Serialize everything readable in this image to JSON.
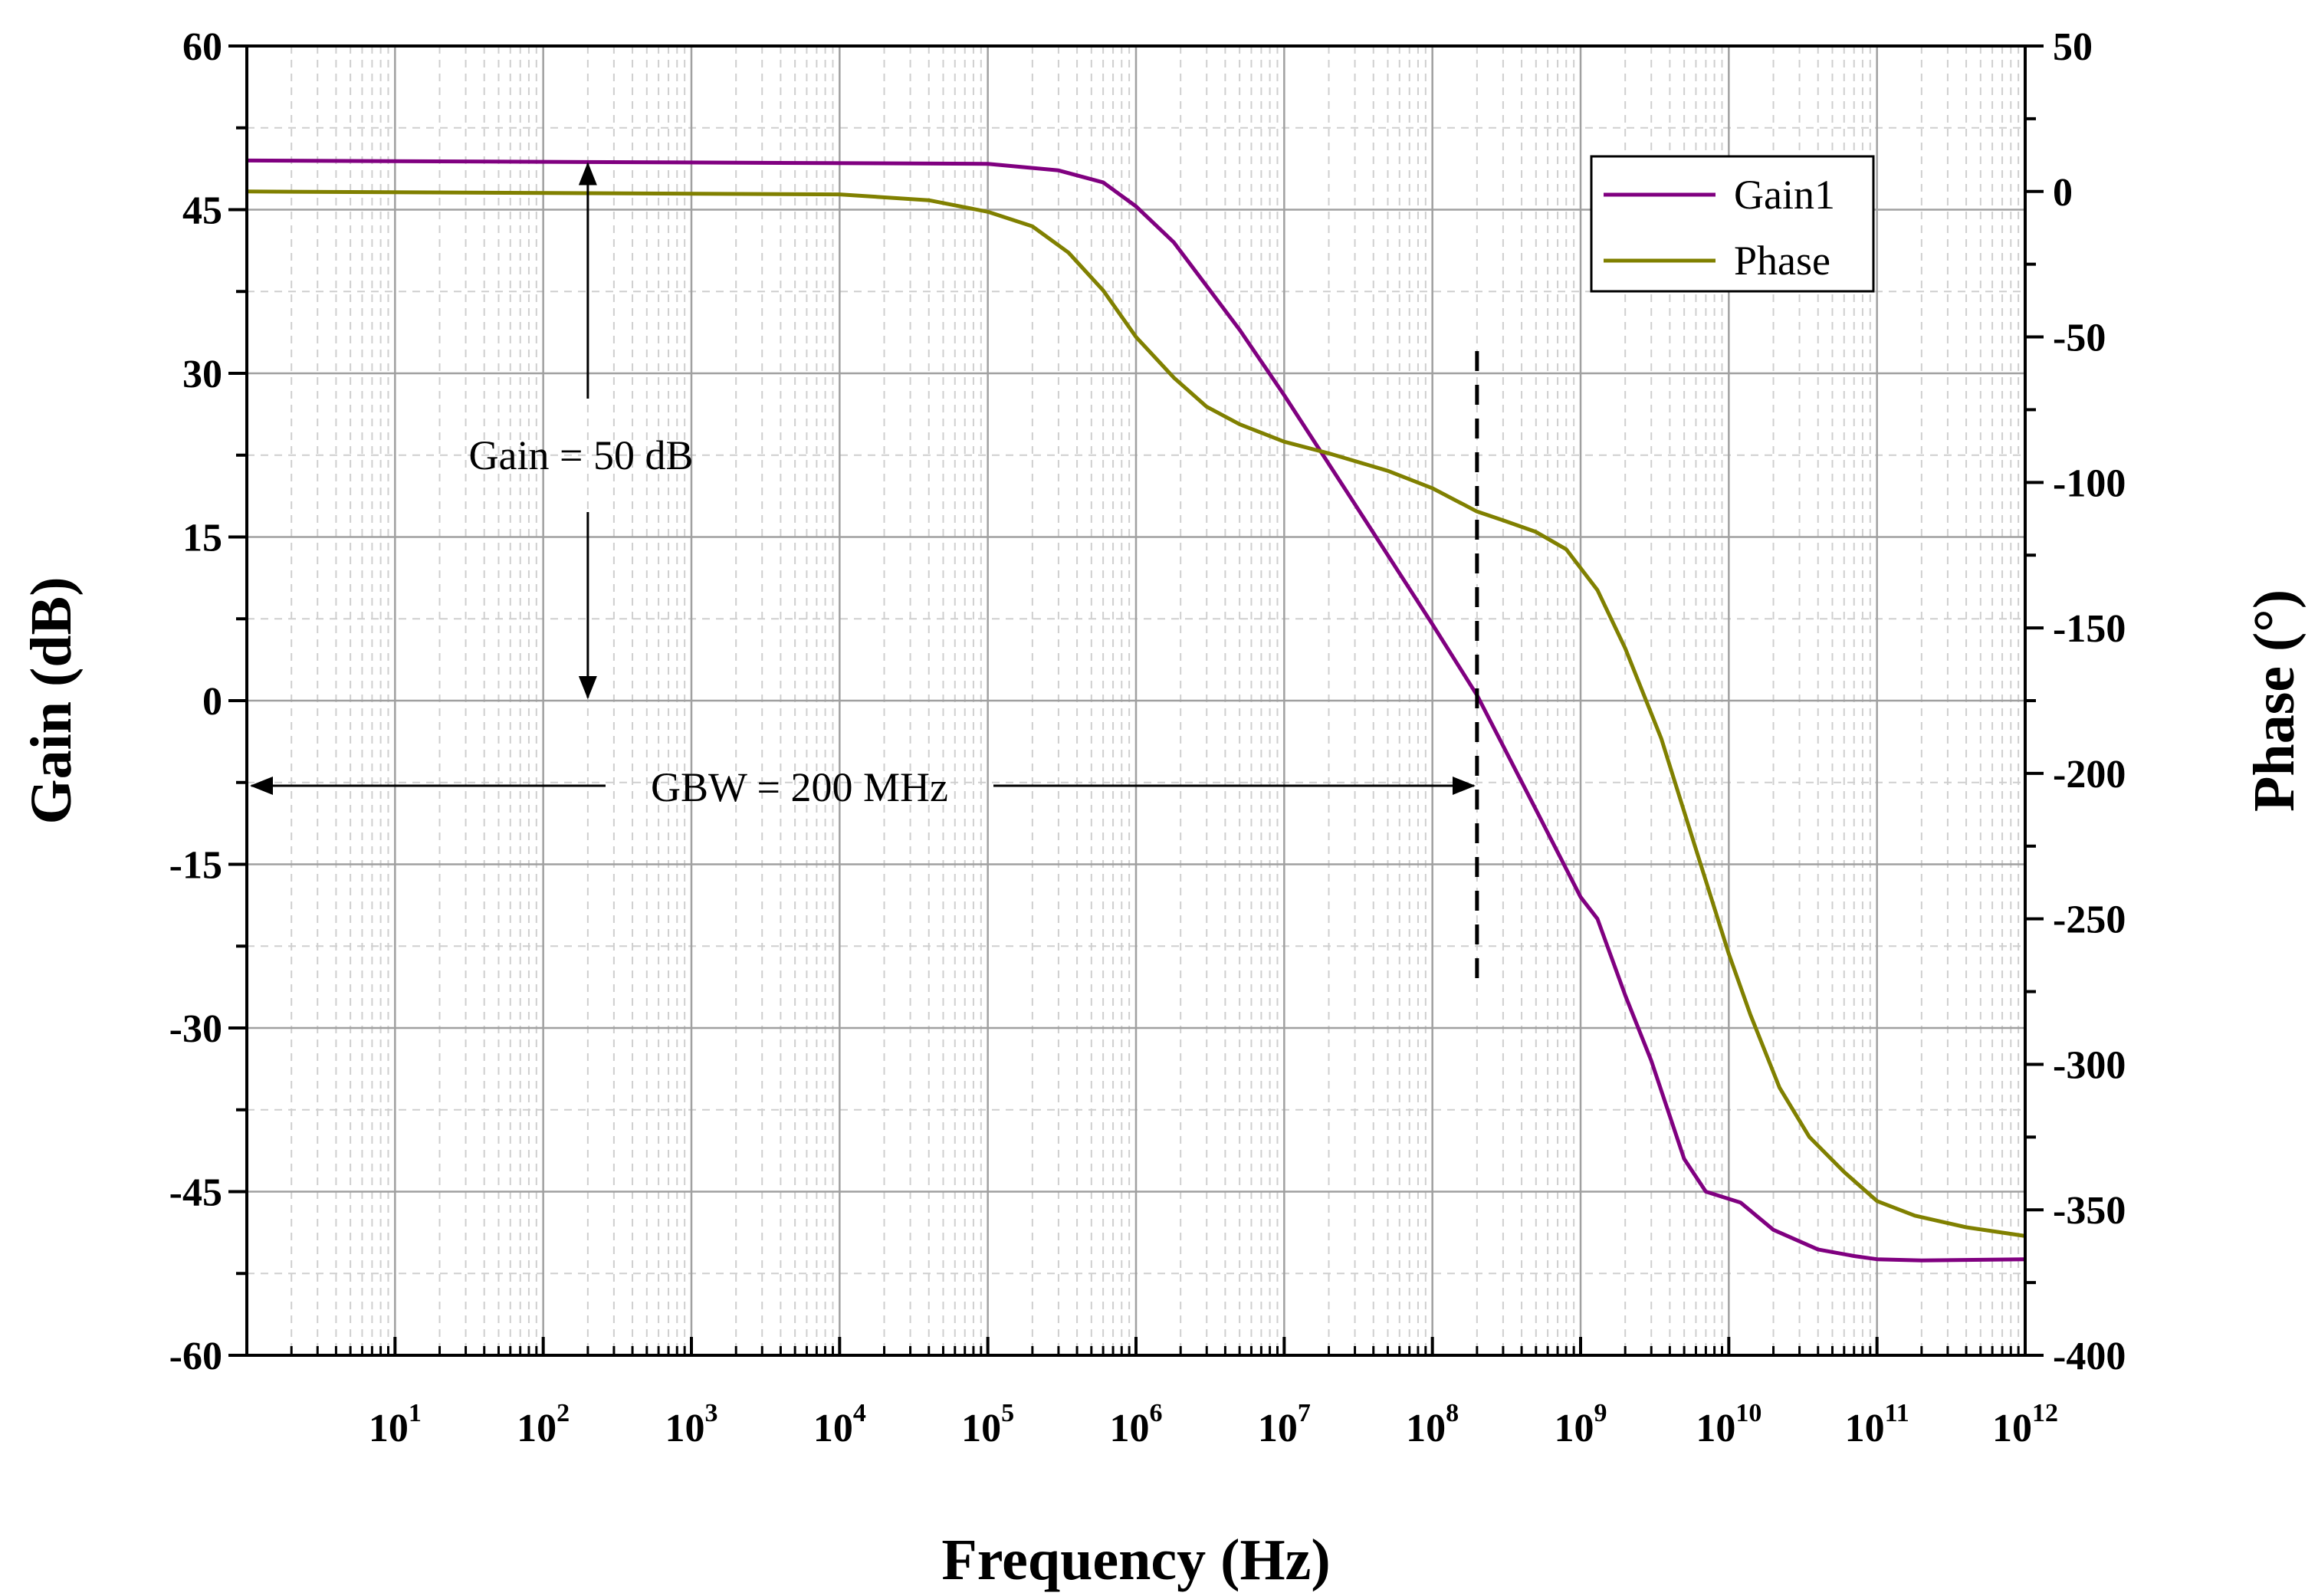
{
  "chart_data": {
    "type": "line",
    "xlabel": "Frequency (Hz)",
    "ylabel_left": "Gain (dB)",
    "ylabel_right": "Phase (°)",
    "x_scale": "log",
    "xlim": [
      1,
      1000000000000
    ],
    "ylim_left": [
      -60,
      60
    ],
    "ylim_right": [
      -400,
      50
    ],
    "x_ticks": [
      {
        "base": "10",
        "exp": "1"
      },
      {
        "base": "10",
        "exp": "2"
      },
      {
        "base": "10",
        "exp": "3"
      },
      {
        "base": "10",
        "exp": "4"
      },
      {
        "base": "10",
        "exp": "5"
      },
      {
        "base": "10",
        "exp": "6"
      },
      {
        "base": "10",
        "exp": "7"
      },
      {
        "base": "10",
        "exp": "8"
      },
      {
        "base": "10",
        "exp": "9"
      },
      {
        "base": "10",
        "exp": "10"
      },
      {
        "base": "10",
        "exp": "11"
      },
      {
        "base": "10",
        "exp": "12"
      }
    ],
    "y_left_ticks": [
      "60",
      "45",
      "30",
      "15",
      "0",
      "-15",
      "-30",
      "-45",
      "-60"
    ],
    "y_right_ticks": [
      "50",
      "0",
      "-50",
      "-100",
      "-150",
      "-200",
      "-250",
      "-300",
      "-350",
      "-400"
    ],
    "grid": true,
    "legend_position": "top-right",
    "series": [
      {
        "name": "Gain1",
        "axis": "left",
        "color": "#800080",
        "x": [
          1,
          100000,
          300000,
          600000,
          1000000,
          1800000,
          3000000,
          5000000,
          10000000,
          30000000,
          100000000,
          200000000,
          500000000,
          1000000000,
          1300000000,
          2000000000,
          3000000000,
          5000000000,
          7000000000,
          12000000000,
          20000000000,
          40000000000,
          70000000000,
          100000000000,
          200000000000,
          1000000000000
        ],
        "y": [
          49.5,
          49.2,
          48.6,
          47.5,
          45.3,
          42,
          38,
          34,
          28,
          18,
          7,
          0.5,
          -10,
          -18,
          -20,
          -27,
          -33,
          -42,
          -45,
          -46,
          -48.5,
          -50.3,
          -50.9,
          -51.2,
          -51.3,
          -51.2
        ]
      },
      {
        "name": "Phase",
        "axis": "right",
        "color": "#808000",
        "x": [
          1,
          10000,
          40000,
          100000,
          200000,
          350000,
          600000,
          1000000,
          1800000,
          3000000,
          5000000,
          10000000,
          20000000,
          50000000,
          100000000,
          200000000,
          300000000,
          500000000,
          800000000,
          1300000000,
          2000000000,
          3500000000,
          6000000000,
          10000000000,
          14000000000,
          22000000000,
          35000000000,
          60000000000,
          100000000000,
          180000000000,
          400000000000,
          1000000000000
        ],
        "y": [
          0,
          -1,
          -3,
          -7,
          -12,
          -21,
          -34,
          -50,
          -64,
          -74,
          -80,
          -86,
          -90,
          -96,
          -102,
          -110,
          -113,
          -117,
          -123,
          -137,
          -157,
          -188,
          -226,
          -262,
          -283,
          -308,
          -325,
          -337,
          -347,
          -352,
          -356,
          -359
        ]
      }
    ],
    "annotations": {
      "gain_label": "Gain = 50 dB",
      "gbw_label": "GBW = 200 MHz",
      "gbw_frequency_hz": 200000000,
      "gain_value_db": 50
    }
  }
}
